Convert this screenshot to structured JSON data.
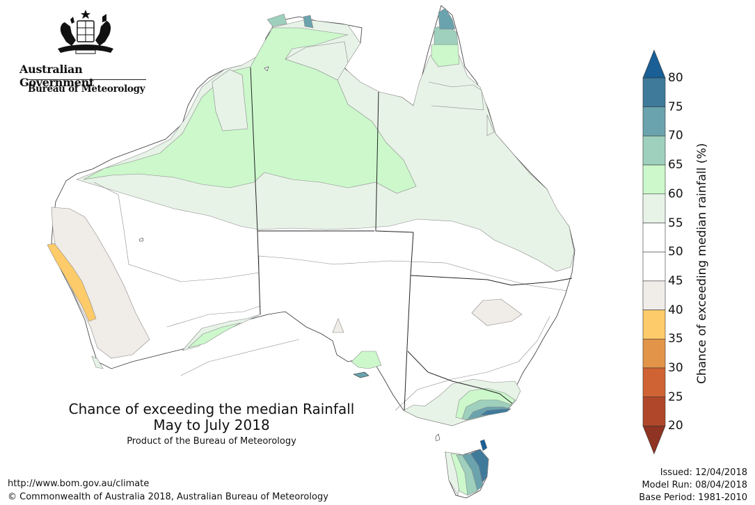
{
  "header": {
    "government": "Australian Government",
    "bureau": "Bureau of Meteorology"
  },
  "title": {
    "line1": "Chance of exceeding the median Rainfall",
    "line2": "May to July 2018",
    "product": "Product of the Bureau of Meteorology"
  },
  "footer": {
    "url": "http://www.bom.gov.au/climate",
    "copyright": "© Commonwealth of Australia 2018, Australian Bureau of Meteorology"
  },
  "meta": {
    "issued": "Issued: 12/04/2018",
    "model_run": "Model Run: 08/04/2018",
    "base_period": "Base Period: 1981-2010"
  },
  "legend": {
    "title": "Chance of exceeding median rainfall (%)",
    "ticks": [
      "80",
      "75",
      "70",
      "65",
      "60",
      "55",
      "50",
      "45",
      "40",
      "35",
      "30",
      "25",
      "20"
    ],
    "bands": [
      {
        "range": "80+",
        "color": "#1a5f96"
      },
      {
        "range": "75-80",
        "color": "#3f7a9b"
      },
      {
        "range": "70-75",
        "color": "#6aa3ad"
      },
      {
        "range": "65-70",
        "color": "#9ed0bd"
      },
      {
        "range": "60-65",
        "color": "#ccf8cc"
      },
      {
        "range": "55-60",
        "color": "#e8f3e8"
      },
      {
        "range": "50-55",
        "color": "#ffffff"
      },
      {
        "range": "45-50",
        "color": "#ffffff"
      },
      {
        "range": "40-45",
        "color": "#f0ece8"
      },
      {
        "range": "35-40",
        "color": "#fdcb6a"
      },
      {
        "range": "30-35",
        "color": "#e29449"
      },
      {
        "range": "25-30",
        "color": "#cf6333"
      },
      {
        "range": "20-25",
        "color": "#b0472a"
      },
      {
        "range": "below 20",
        "color": "#8f3323"
      }
    ]
  }
}
